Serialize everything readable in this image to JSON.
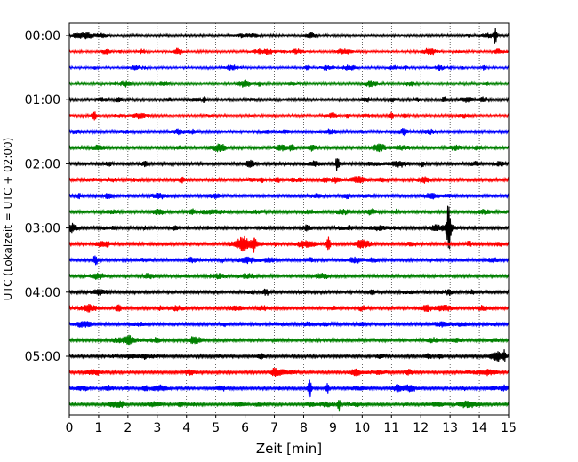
{
  "chart_data": {
    "type": "line",
    "title": "",
    "xlabel": "Zeit  [min]",
    "ylabel": "UTC (Lokalzeit = UTC + 02:00)",
    "xlim": [
      0,
      15
    ],
    "xticks": [
      "0",
      "1",
      "2",
      "3",
      "4",
      "5",
      "6",
      "7",
      "8",
      "9",
      "10",
      "11",
      "12",
      "13",
      "14",
      "15"
    ],
    "yticks": [
      "00:00",
      "01:00",
      "02:00",
      "03:00",
      "04:00",
      "05:00"
    ],
    "grid": "vertical dotted",
    "colors": [
      "#000000",
      "#ff0000",
      "#0000ff",
      "#008000"
    ],
    "rows_count": 24,
    "row_minutes": 15,
    "events": [
      {
        "row": 0,
        "x": 14.55,
        "amp": 0.6
      },
      {
        "row": 5,
        "x": 11.0,
        "amp": 0.3
      },
      {
        "row": 8,
        "x": 9.15,
        "amp": 0.6
      },
      {
        "row": 12,
        "x": 12.95,
        "amp": 2.2
      },
      {
        "row": 13,
        "x": 6.3,
        "amp": 0.45
      },
      {
        "row": 13,
        "x": 8.85,
        "amp": 0.4
      },
      {
        "row": 14,
        "x": 0.9,
        "amp": 0.35
      },
      {
        "row": 20,
        "x": 14.85,
        "amp": 0.6
      },
      {
        "row": 22,
        "x": 8.2,
        "amp": 0.8
      },
      {
        "row": 22,
        "x": 8.8,
        "amp": 0.4
      },
      {
        "row": 23,
        "x": 9.2,
        "amp": 0.55
      }
    ]
  }
}
